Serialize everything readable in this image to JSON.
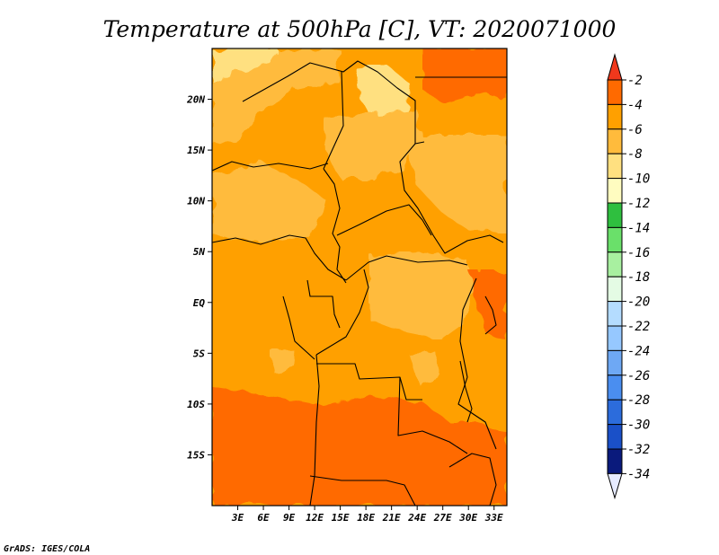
{
  "chart_data": {
    "type": "heatmap",
    "title": "Temperature at 500hPa [C], VT: 2020071000",
    "variable": "Temperature at 500hPa",
    "units": "C",
    "valid_time": "2020071000",
    "x_ticks": [
      "3E",
      "6E",
      "9E",
      "12E",
      "15E",
      "18E",
      "21E",
      "24E",
      "27E",
      "30E",
      "33E"
    ],
    "x_tick_values": [
      3,
      6,
      9,
      12,
      15,
      18,
      21,
      24,
      27,
      30,
      33
    ],
    "y_ticks": [
      "20N",
      "15N",
      "10N",
      "5N",
      "EQ",
      "5S",
      "10S",
      "15S"
    ],
    "y_tick_values": [
      20,
      15,
      10,
      5,
      0,
      -5,
      -10,
      -15
    ],
    "xlim": [
      0,
      34.5
    ],
    "ylim": [
      -20,
      25
    ],
    "levels": [
      -2,
      -4,
      -6,
      -8,
      -10,
      -12,
      -14,
      -16,
      -18,
      -20,
      -22,
      -24,
      -26,
      -28,
      -30,
      -32,
      -34
    ],
    "level_labels": [
      "-2",
      "-4",
      "-6",
      "-8",
      "-10",
      "-12",
      "-14",
      "-16",
      "-18",
      "-20",
      "-22",
      "-24",
      "-26",
      "-28",
      "-30",
      "-32",
      "-34"
    ],
    "level_colors": [
      "#ff6a00",
      "#ffa000",
      "#ffbb3c",
      "#ffe080",
      "#fffcc0",
      "#2fbf3f",
      "#6ae06a",
      "#a8f0a0",
      "#e4fbe4",
      "#b4dcff",
      "#96c8ff",
      "#6ea8f4",
      "#4a8ef0",
      "#2c6cdc",
      "#1a50c8",
      "#0a1a7c"
    ],
    "over_color": "#f0381c",
    "under_color": "#e6ebff",
    "regions": [
      {
        "name": "background",
        "value": -5.0
      },
      {
        "name": "northwest-warm-band",
        "value": -6.5
      },
      {
        "name": "sahara-cool-patch",
        "value": -8.5
      },
      {
        "name": "nile-cool-patch",
        "value": -9.0
      },
      {
        "name": "northeast-hot-spot",
        "value": -2.5
      },
      {
        "name": "sahel-band",
        "value": -6.5
      },
      {
        "name": "central-africa-band",
        "value": -6.5
      },
      {
        "name": "congo-cool-patch",
        "value": -7.0
      },
      {
        "name": "southern-warm-band",
        "value": -3.5
      }
    ]
  },
  "credit": "GrADS: IGES/COLA"
}
